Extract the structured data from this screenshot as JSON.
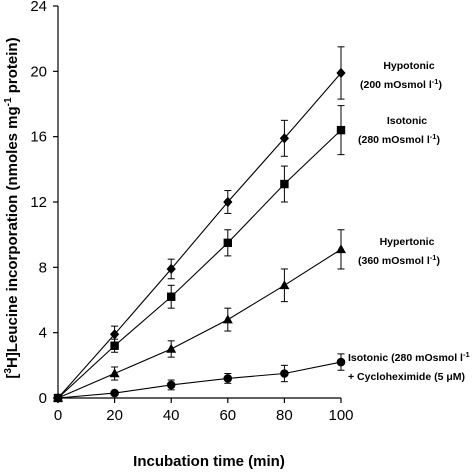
{
  "chart_data": {
    "type": "line",
    "xlabel": "Incubation time (min)",
    "ylabel": {
      "pre": "[",
      "sup1": "3",
      "mid": "H]Leucine incorporation (nmoles mg",
      "sup2": "-1",
      "post": " protein)"
    },
    "x": [
      0,
      20,
      40,
      60,
      80,
      100
    ],
    "xlim": [
      0,
      100
    ],
    "ylim": [
      0,
      24
    ],
    "xticks": [
      0,
      20,
      40,
      60,
      80,
      100
    ],
    "yticks": [
      0,
      4,
      8,
      12,
      16,
      20,
      24
    ],
    "grid": false,
    "series": [
      {
        "marker": "diamond",
        "label_lines": [
          "Hypotonic",
          "(200 mOsmol l",
          "-1",
          ")"
        ],
        "values": [
          0,
          3.9,
          7.9,
          12.0,
          15.9,
          19.9
        ],
        "errors": [
          0.1,
          0.5,
          0.6,
          0.7,
          1.1,
          1.6
        ]
      },
      {
        "marker": "square",
        "label_lines": [
          "Isotonic",
          "(280 mOsmol l",
          "-1",
          ")"
        ],
        "values": [
          0,
          3.2,
          6.2,
          9.5,
          13.1,
          16.4
        ],
        "errors": [
          0.1,
          0.4,
          0.7,
          0.8,
          1.1,
          1.5
        ]
      },
      {
        "marker": "triangle",
        "label_lines": [
          "Hypertonic",
          "(360 mOsmol l",
          "-1",
          ")"
        ],
        "values": [
          0,
          1.5,
          3.0,
          4.8,
          6.9,
          9.1
        ],
        "errors": [
          0.1,
          0.4,
          0.5,
          0.7,
          1.0,
          1.2
        ]
      },
      {
        "marker": "circle",
        "label_lines": [
          "Isotonic (280 mOsmol l",
          "-1",
          "+ Cycloheximide (5 μM)"
        ],
        "values": [
          0,
          0.3,
          0.8,
          1.2,
          1.5,
          2.2
        ],
        "errors": [
          0.05,
          0.1,
          0.3,
          0.3,
          0.5,
          0.5
        ]
      }
    ]
  }
}
